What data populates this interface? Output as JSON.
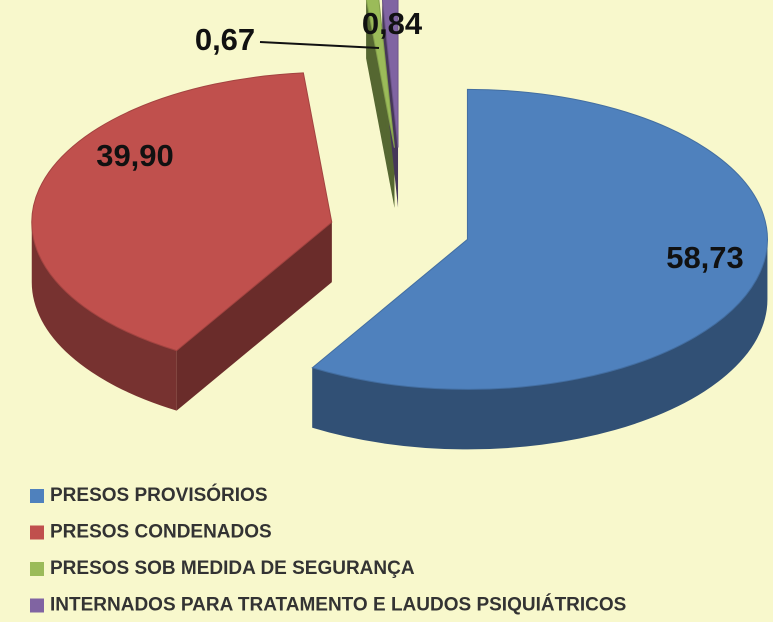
{
  "chart_data": {
    "type": "pie",
    "categories": [
      "PRESOS PROVISÓRIOS",
      "PRESOS CONDENADOS",
      "PRESOS SOB MEDIDA DE SEGURANÇA",
      "INTERNADOS PARA TRATAMENTO E LAUDOS PSIQUIÁTRICOS"
    ],
    "values": [
      58.73,
      39.9,
      0.67,
      0.84
    ],
    "value_labels": [
      "58,73",
      "39,90",
      "0,67",
      "0,84"
    ],
    "colors": [
      "#4f81bd",
      "#c0504d",
      "#9bbb59",
      "#8064a2"
    ]
  }
}
